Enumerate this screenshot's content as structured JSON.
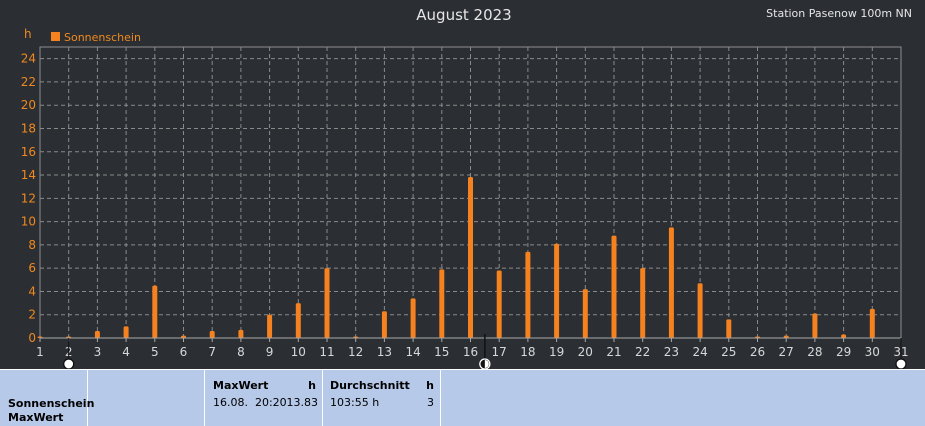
{
  "header": {
    "title": "August 2023",
    "station": "Station Pasenow 100m NN",
    "unit": "h"
  },
  "chart_data": {
    "type": "bar",
    "title": "August 2023",
    "ylabel": "h",
    "ylim": [
      0,
      25
    ],
    "yticks": [
      0,
      2,
      4,
      6,
      8,
      10,
      12,
      14,
      16,
      18,
      20,
      22,
      24
    ],
    "categories": [
      "1",
      "2",
      "3",
      "4",
      "5",
      "6",
      "7",
      "8",
      "9",
      "10",
      "11",
      "12",
      "13",
      "14",
      "15",
      "16",
      "17",
      "18",
      "19",
      "20",
      "21",
      "22",
      "23",
      "24",
      "25",
      "26",
      "27",
      "28",
      "29",
      "30",
      "31"
    ],
    "series": [
      {
        "name": "Sonnenschein",
        "color": "#f5821f",
        "values": [
          0.1,
          0.1,
          0.6,
          1.0,
          4.5,
          0.2,
          0.6,
          0.7,
          2.0,
          3.0,
          6.0,
          0.05,
          2.3,
          3.4,
          5.9,
          13.83,
          5.8,
          7.4,
          8.1,
          4.2,
          8.8,
          6.0,
          9.5,
          4.7,
          1.6,
          0.05,
          0.2,
          2.1,
          0.3,
          2.5,
          0
        ]
      }
    ],
    "grid": true,
    "legend": "top-left",
    "markers": [
      {
        "day": 2,
        "icon": "full-moon-icon"
      },
      {
        "day": 16.5,
        "icon": "new-moon-icon"
      },
      {
        "day": 31,
        "icon": "full-moon-icon"
      }
    ]
  },
  "stats": {
    "series_label": "Sonnenschein",
    "row_label": "MaxWert",
    "max": {
      "header": "MaxWert",
      "unit": "h",
      "datetime": "16.08.  20:20",
      "value": "13.83"
    },
    "avg": {
      "header": "Durchschnitt",
      "unit": "h",
      "value": "103:55 h",
      "count": "3"
    }
  }
}
